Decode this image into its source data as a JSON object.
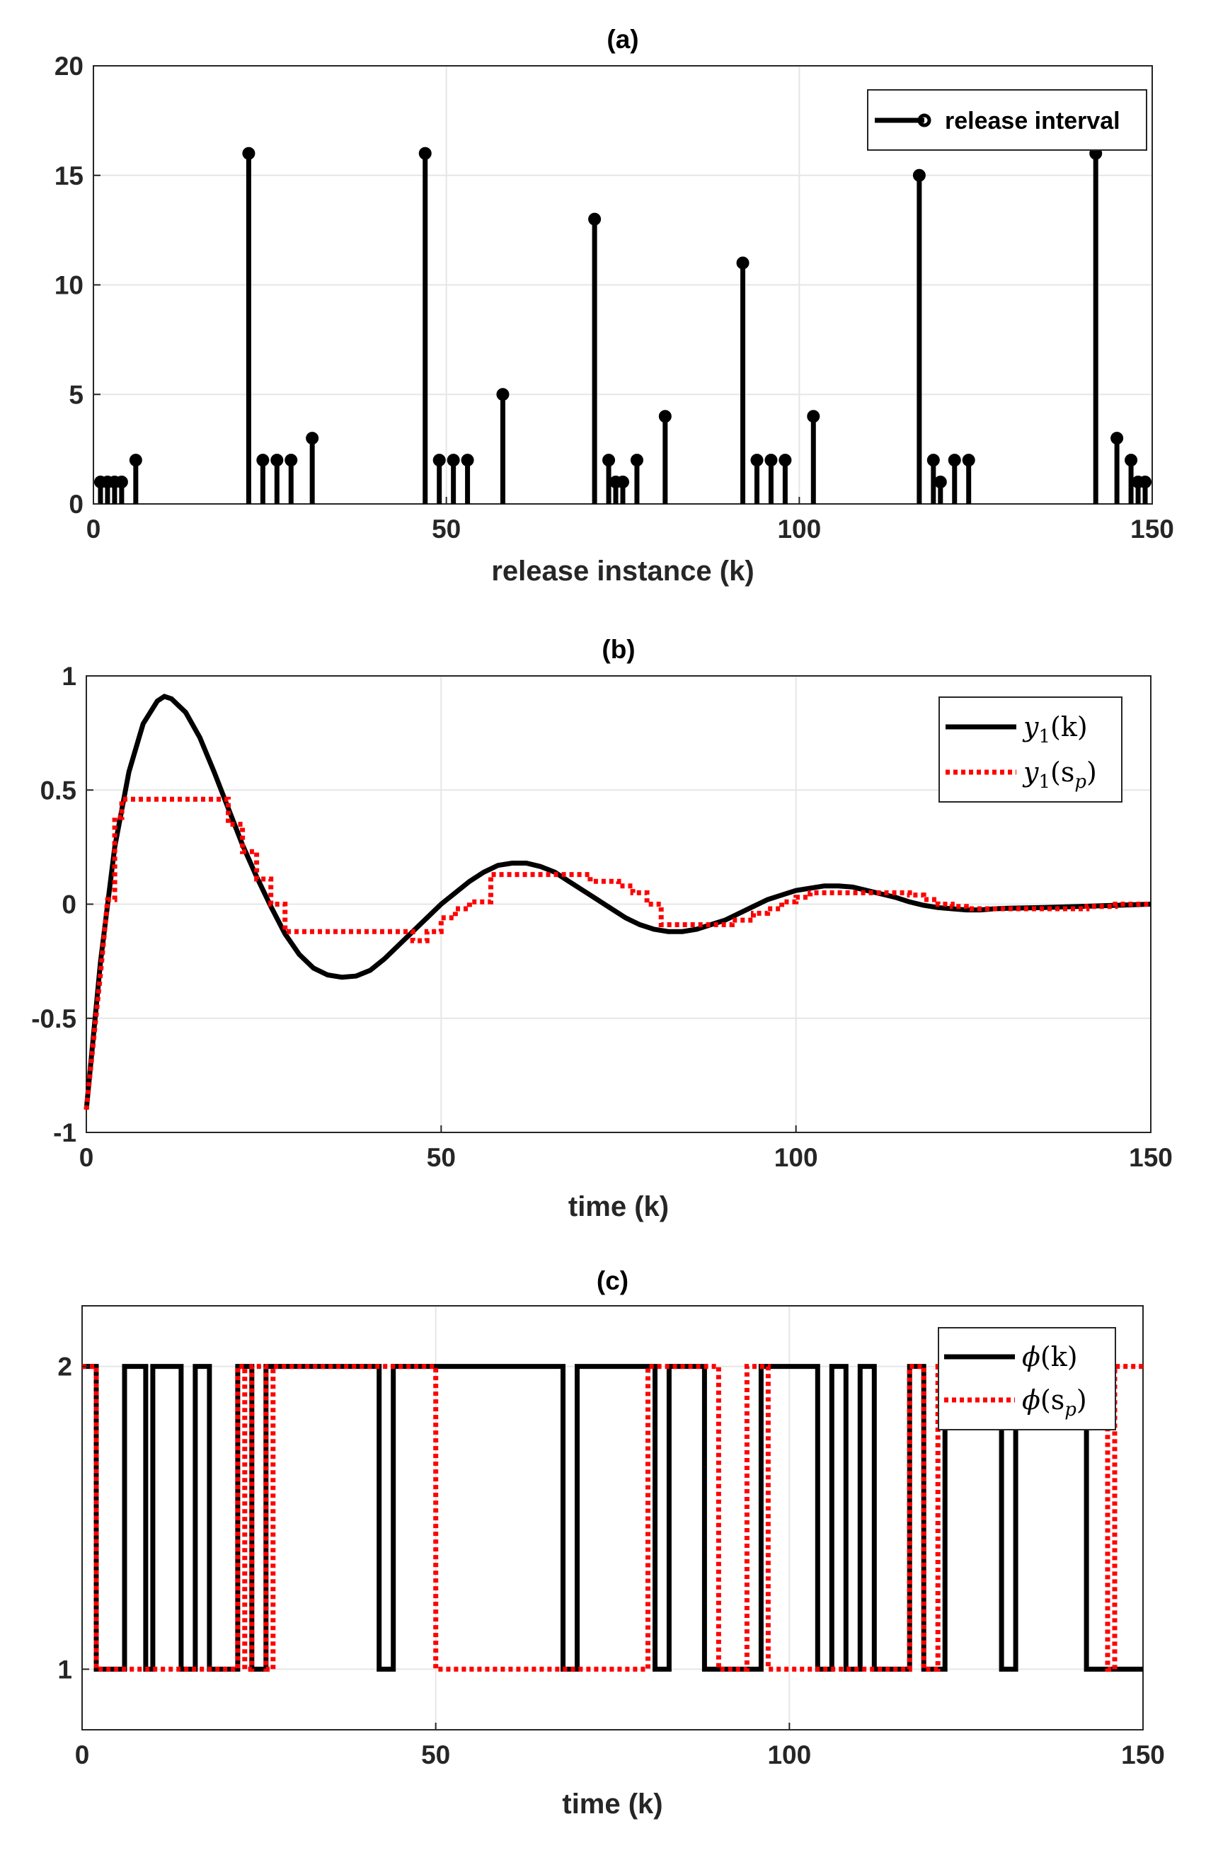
{
  "chart_data": [
    {
      "id": "a",
      "type": "stem",
      "title": "(a)",
      "xlabel": "release instance (k)",
      "ylabel": "",
      "xlim": [
        0,
        150
      ],
      "ylim": [
        0,
        20
      ],
      "xticks": [
        0,
        50,
        100,
        150
      ],
      "yticks": [
        0,
        5,
        10,
        15,
        20
      ],
      "grid": true,
      "legend_position": "top-right",
      "series": [
        {
          "name": "release interval",
          "color": "#000000",
          "x": [
            1,
            2,
            3,
            4,
            6,
            22,
            24,
            26,
            28,
            31,
            47,
            49,
            51,
            53,
            58,
            71,
            73,
            74,
            75,
            77,
            81,
            92,
            94,
            96,
            98,
            102,
            117,
            119,
            120,
            122,
            124,
            142,
            145,
            147,
            148,
            149
          ],
          "y": [
            1,
            1,
            1,
            1,
            2,
            16,
            2,
            2,
            2,
            3,
            16,
            2,
            2,
            2,
            5,
            13,
            2,
            1,
            1,
            2,
            4,
            11,
            2,
            2,
            2,
            4,
            15,
            2,
            1,
            2,
            2,
            16,
            3,
            2,
            1,
            1
          ]
        }
      ]
    },
    {
      "id": "b",
      "type": "line",
      "title": "(b)",
      "xlabel": "time (k)",
      "ylabel": "",
      "xlim": [
        0,
        150
      ],
      "ylim": [
        -1,
        1
      ],
      "xticks": [
        0,
        50,
        100,
        150
      ],
      "yticks": [
        -1,
        -0.5,
        0,
        0.5,
        1
      ],
      "grid": true,
      "legend_position": "top-right",
      "series": [
        {
          "name": "y1(k)",
          "color": "#000000",
          "style": "solid",
          "x": [
            0,
            2,
            4,
            6,
            8,
            10,
            11,
            12,
            14,
            16,
            18,
            20,
            22,
            24,
            26,
            28,
            30,
            32,
            34,
            36,
            38,
            40,
            42,
            44,
            46,
            48,
            50,
            52,
            54,
            56,
            58,
            60,
            62,
            64,
            66,
            68,
            70,
            72,
            74,
            76,
            78,
            80,
            82,
            84,
            86,
            88,
            90,
            92,
            94,
            96,
            98,
            100,
            102,
            104,
            106,
            108,
            110,
            112,
            114,
            116,
            118,
            120,
            122,
            124,
            126,
            128,
            130,
            135,
            140,
            145,
            150
          ],
          "y": [
            -0.9,
            -0.25,
            0.25,
            0.58,
            0.79,
            0.89,
            0.91,
            0.9,
            0.84,
            0.73,
            0.58,
            0.42,
            0.26,
            0.12,
            -0.01,
            -0.13,
            -0.22,
            -0.28,
            -0.31,
            -0.32,
            -0.315,
            -0.29,
            -0.24,
            -0.18,
            -0.12,
            -0.06,
            0.0,
            0.05,
            0.1,
            0.14,
            0.17,
            0.18,
            0.18,
            0.165,
            0.14,
            0.1,
            0.06,
            0.02,
            -0.02,
            -0.06,
            -0.09,
            -0.11,
            -0.12,
            -0.12,
            -0.11,
            -0.09,
            -0.07,
            -0.04,
            -0.01,
            0.02,
            0.04,
            0.06,
            0.07,
            0.08,
            0.08,
            0.075,
            0.06,
            0.045,
            0.03,
            0.01,
            -0.005,
            -0.015,
            -0.02,
            -0.025,
            -0.025,
            -0.02,
            -0.018,
            -0.015,
            -0.01,
            -0.005,
            0.0
          ]
        },
        {
          "name": "y1(sp)",
          "color": "#ff0000",
          "style": "dotted",
          "x": [
            0,
            2,
            3,
            4,
            4,
            5,
            5,
            20,
            20,
            22,
            22,
            24,
            24,
            26,
            26,
            28,
            28,
            31,
            31,
            46,
            46,
            48,
            48,
            50,
            50,
            52,
            52,
            54,
            54,
            57,
            57,
            71,
            71,
            73,
            73,
            75,
            75,
            77,
            77,
            79,
            79,
            81,
            81,
            91,
            91,
            94,
            94,
            96,
            96,
            98,
            98,
            100,
            100,
            102,
            102,
            116,
            116,
            118,
            118,
            120,
            120,
            122,
            122,
            124,
            124,
            141,
            141,
            145,
            145,
            150
          ],
          "y": [
            -0.9,
            -0.3,
            0.02,
            0.02,
            0.38,
            0.38,
            0.46,
            0.46,
            0.35,
            0.35,
            0.23,
            0.23,
            0.11,
            0.11,
            0.0,
            0.0,
            -0.12,
            -0.12,
            -0.12,
            -0.12,
            -0.16,
            -0.16,
            -0.12,
            -0.12,
            -0.06,
            -0.06,
            -0.02,
            -0.02,
            0.01,
            0.01,
            0.13,
            0.13,
            0.1,
            0.1,
            0.1,
            0.1,
            0.08,
            0.08,
            0.05,
            0.05,
            0.0,
            0.0,
            -0.09,
            -0.09,
            -0.07,
            -0.07,
            -0.04,
            -0.04,
            -0.02,
            -0.02,
            0.01,
            0.01,
            0.03,
            0.03,
            0.05,
            0.05,
            0.04,
            0.04,
            0.02,
            0.02,
            0.0,
            0.0,
            -0.01,
            -0.01,
            -0.02,
            -0.02,
            -0.01,
            -0.01,
            0.0,
            0.0
          ]
        }
      ]
    },
    {
      "id": "c",
      "type": "step",
      "title": "(c)",
      "xlabel": "time (k)",
      "ylabel": "",
      "xlim": [
        0,
        150
      ],
      "ylim": [
        0.8,
        2.2
      ],
      "xticks": [
        0,
        50,
        100,
        150
      ],
      "yticks": [
        1,
        2
      ],
      "grid": true,
      "legend_position": "top-right",
      "series": [
        {
          "name": "phi(k)",
          "color": "#000000",
          "style": "solid",
          "x": [
            0,
            2,
            2,
            6,
            6,
            9,
            9,
            10,
            10,
            14,
            14,
            16,
            16,
            18,
            18,
            22,
            22,
            24,
            24,
            26,
            26,
            42,
            42,
            44,
            44,
            68,
            68,
            70,
            70,
            81,
            81,
            83,
            83,
            88,
            88,
            96,
            96,
            104,
            104,
            106,
            106,
            108,
            108,
            110,
            110,
            112,
            112,
            117,
            117,
            119,
            119,
            122,
            122,
            130,
            130,
            132,
            132,
            142,
            142,
            150
          ],
          "y": [
            2,
            2,
            1,
            1,
            2,
            2,
            1,
            1,
            2,
            2,
            1,
            1,
            2,
            2,
            1,
            1,
            2,
            2,
            1,
            1,
            2,
            2,
            1,
            1,
            2,
            2,
            1,
            1,
            2,
            2,
            1,
            1,
            2,
            2,
            1,
            1,
            2,
            2,
            1,
            1,
            2,
            2,
            1,
            1,
            2,
            2,
            1,
            1,
            2,
            2,
            1,
            1,
            2,
            2,
            1,
            1,
            2,
            2,
            1,
            1
          ]
        },
        {
          "name": "phi(sp)",
          "color": "#ff0000",
          "style": "dotted",
          "x": [
            0,
            2,
            2,
            22,
            22,
            23,
            23,
            24,
            24,
            26,
            26,
            27,
            27,
            50,
            50,
            80,
            80,
            90,
            90,
            94,
            94,
            97,
            97,
            117,
            117,
            119,
            119,
            121,
            121,
            145,
            145,
            146,
            146,
            150
          ],
          "y": [
            2,
            2,
            1,
            1,
            2,
            2,
            1,
            1,
            2,
            2,
            1,
            1,
            2,
            2,
            1,
            1,
            2,
            2,
            1,
            1,
            2,
            2,
            1,
            1,
            2,
            2,
            1,
            1,
            2,
            2,
            1,
            1,
            2,
            2
          ]
        }
      ]
    }
  ],
  "legends": {
    "a": [
      {
        "label": "release interval"
      }
    ],
    "b": [
      {
        "main": "y",
        "sub": "1",
        "arg": "(k)"
      },
      {
        "main": "y",
        "sub": "1",
        "arg_open": "(s",
        "arg_sub": "p",
        "arg_close": ")"
      }
    ],
    "c": [
      {
        "main": "ϕ",
        "arg": "(k)"
      },
      {
        "main": "ϕ",
        "arg_open": "(s",
        "arg_sub": "p",
        "arg_close": ")"
      }
    ]
  }
}
